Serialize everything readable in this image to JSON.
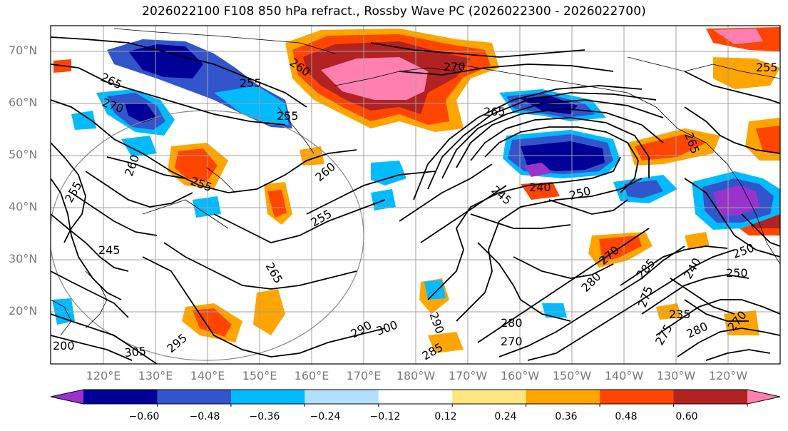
{
  "title": "2026022100 F108 850 hPa refract., Rossby Wave PC (2026022300 - 2026022700)",
  "lat_labels": [
    "70°N",
    "60°N",
    "50°N",
    "40°N",
    "30°N",
    "20°N"
  ],
  "lon_labels": [
    "120°E",
    "130°E",
    "140°E",
    "150°E",
    "160°E",
    "170°E",
    "180°W",
    "170°W",
    "160°W",
    "150°W",
    "140°W",
    "130°W",
    "120°W"
  ],
  "colorbar": {
    "tick_labels": [
      "−0.60",
      "−0.48",
      "−0.36",
      "−0.24",
      "−0.12",
      "0.12",
      "0.24",
      "0.36",
      "0.48",
      "0.60"
    ],
    "colors": [
      "#9933cc",
      "#000099",
      "#3355cc",
      "#00bbff",
      "#b3e0ff",
      "#ffffff",
      "#ffe680",
      "#ffa500",
      "#ff4500",
      "#b22222",
      "#ff80b0"
    ]
  },
  "contour_labels": [
    "265",
    "255",
    "270",
    "260",
    "255",
    "270",
    "265",
    "260",
    "255",
    "260",
    "255",
    "255",
    "245",
    "240",
    "250",
    "245",
    "265",
    "270",
    "280",
    "285",
    "290",
    "300",
    "305",
    "295",
    "280",
    "270",
    "290",
    "285",
    "280",
    "275",
    "240",
    "235",
    "250",
    "270",
    "275",
    "250",
    "265",
    "200",
    "255"
  ]
}
